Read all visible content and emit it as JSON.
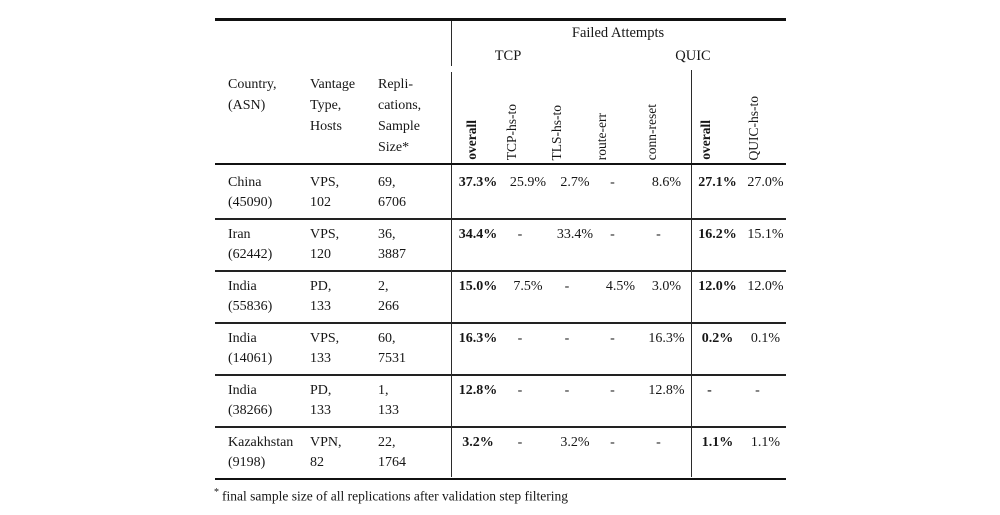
{
  "header": {
    "country_col": "Country,\n(ASN)",
    "vantage_col": "Vantage\nType,\nHosts",
    "repl_col": "Repli-\ncations,\nSample\nSize*",
    "failed_attempts": "Failed Attempts",
    "tcp_group": "TCP",
    "quic_group": "QUIC",
    "tcp_sub": [
      "overall",
      "TCP-hs-to",
      "TLS-hs-to",
      "route-err",
      "conn-reset"
    ],
    "quic_sub": [
      "overall",
      "QUIC-hs-to"
    ]
  },
  "rows": [
    {
      "country": "China\n(45090)",
      "vantage": "VPS,\n102",
      "replications": "69,\n6706",
      "tcp_overall": "37.3%",
      "tcp_hs_to": "25.9%",
      "tls_hs_to": "2.7%",
      "route_err": "-",
      "conn_reset": "8.6%",
      "quic_overall": "27.1%",
      "quic_hs_to": "27.0%"
    },
    {
      "country": "Iran\n(62442)",
      "vantage": "VPS,\n120",
      "replications": "36,\n3887",
      "tcp_overall": "34.4%",
      "tcp_hs_to": "-",
      "tls_hs_to": "33.4%",
      "route_err": "-",
      "conn_reset": "-",
      "quic_overall": "16.2%",
      "quic_hs_to": "15.1%"
    },
    {
      "country": "India\n(55836)",
      "vantage": "PD,\n133",
      "replications": "2,\n266",
      "tcp_overall": "15.0%",
      "tcp_hs_to": "7.5%",
      "tls_hs_to": "-",
      "route_err": "4.5%",
      "conn_reset": "3.0%",
      "quic_overall": "12.0%",
      "quic_hs_to": "12.0%"
    },
    {
      "country": "India\n(14061)",
      "vantage": "VPS,\n133",
      "replications": "60,\n7531",
      "tcp_overall": "16.3%",
      "tcp_hs_to": "-",
      "tls_hs_to": "-",
      "route_err": "-",
      "conn_reset": "16.3%",
      "quic_overall": "0.2%",
      "quic_hs_to": "0.1%"
    },
    {
      "country": "India\n(38266)",
      "vantage": "PD,\n133",
      "replications": "1,\n133",
      "tcp_overall": "12.8%",
      "tcp_hs_to": "-",
      "tls_hs_to": "-",
      "route_err": "-",
      "conn_reset": "12.8%",
      "quic_overall": "-",
      "quic_hs_to": "-"
    },
    {
      "country": "Kazakhstan\n(9198)",
      "vantage": "VPN,\n82",
      "replications": "22,\n1764",
      "tcp_overall": "3.2%",
      "tcp_hs_to": "-",
      "tls_hs_to": "3.2%",
      "route_err": "-",
      "conn_reset": "-",
      "quic_overall": "1.1%",
      "quic_hs_to": "1.1%"
    }
  ],
  "footnote": {
    "marker": "*",
    "text": "final sample size of all replications after validation step filtering"
  }
}
